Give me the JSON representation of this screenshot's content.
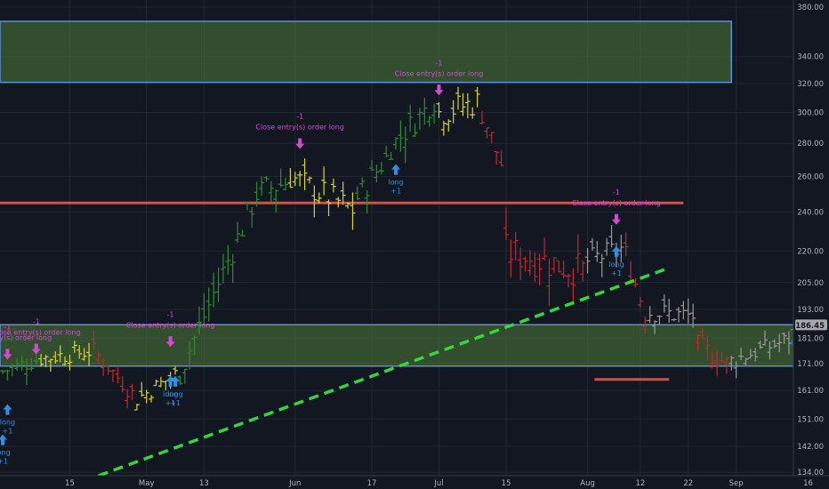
{
  "chart_data": {
    "type": "ohlc",
    "title": "",
    "xlabel": "",
    "ylabel": "",
    "ylim": [
      133,
      386
    ],
    "y_scale": "log",
    "grid": true,
    "current_price": 186.45,
    "y_ticks": [
      134.0,
      142.0,
      151.0,
      161.0,
      171.0,
      181.0,
      193.0,
      205.0,
      220.0,
      240.0,
      260.0,
      280.0,
      300.0,
      320.0,
      340.0,
      380.0
    ],
    "x_ticks": [
      "15",
      "May",
      "13",
      "Jun",
      "17",
      "Jul",
      "15",
      "Aug",
      "12",
      "22",
      "Sep",
      "16"
    ],
    "colors": {
      "background": "#131722",
      "grid": "#232733",
      "bull_strong": "#2f8c2f",
      "bull_weak": "#d4d43a",
      "bear": "#c22a2a",
      "neutral": "#9a9a9a",
      "zone_fill": "#4f7a3a",
      "zone_border": "#5c8fd6",
      "resistance_line": "#e5483f",
      "trend_line": "#35d63a",
      "entry_marker": "#2f8fe5",
      "exit_marker": "#d54ad5",
      "price_badge": "#a8a8b0"
    },
    "zones": [
      {
        "from": 321,
        "to": 368,
        "x_start": "Apr 01",
        "x_end": "Aug 31"
      },
      {
        "from": 170,
        "to": 186.5,
        "x_start": "Apr 01",
        "x_end": "Sep 15"
      }
    ],
    "levels": [
      {
        "price": 245,
        "x_start": "Apr 01",
        "x_end": "Aug 21"
      },
      {
        "price": 165,
        "x_start": "Aug 03",
        "x_end": "Aug 18"
      }
    ],
    "trendline": {
      "from": [
        "Apr 21",
        133
      ],
      "to": [
        "Aug 17",
        211
      ]
    },
    "segments": [
      {
        "from": "Apr 01",
        "to": "Apr 09",
        "start": 168,
        "end": 173,
        "vol": 0.025,
        "color": "bull_strong"
      },
      {
        "from": "Apr 09",
        "to": "Apr 20",
        "start": 173,
        "end": 176,
        "vol": 0.025,
        "color": "bull_weak"
      },
      {
        "from": "Apr 20",
        "to": "Apr 29",
        "start": 176,
        "end": 158,
        "vol": 0.025,
        "color": "bear"
      },
      {
        "from": "Apr 29",
        "to": "May 08",
        "start": 158,
        "end": 168,
        "vol": 0.025,
        "color": "bull_weak"
      },
      {
        "from": "May 08",
        "to": "May 24",
        "start": 168,
        "end": 250,
        "vol": 0.04,
        "color": "bull_strong"
      },
      {
        "from": "May 24",
        "to": "May 31",
        "start": 250,
        "end": 258,
        "vol": 0.04,
        "color": "bull_strong"
      },
      {
        "from": "May 31",
        "to": "Jun 14",
        "start": 260,
        "end": 240,
        "vol": 0.04,
        "color": "bull_weak"
      },
      {
        "from": "Jun 14",
        "to": "Jun 21",
        "start": 248,
        "end": 275,
        "vol": 0.035,
        "color": "bull_strong"
      },
      {
        "from": "Jun 21",
        "to": "Jul 01",
        "start": 278,
        "end": 312,
        "vol": 0.035,
        "color": "bull_strong"
      },
      {
        "from": "Jul 01",
        "to": "Jul 10",
        "start": 300,
        "end": 308,
        "vol": 0.04,
        "color": "bull_weak"
      },
      {
        "from": "Jul 10",
        "to": "Jul 15",
        "start": 300,
        "end": 260,
        "vol": 0.035,
        "color": "bear"
      },
      {
        "from": "Jul 15",
        "to": "Aug 01",
        "start": 220,
        "end": 210,
        "vol": 0.05,
        "color": "bear"
      },
      {
        "from": "Aug 01",
        "to": "Aug 09",
        "start": 215,
        "end": 222,
        "vol": 0.035,
        "color": "neutral"
      },
      {
        "from": "Aug 09",
        "to": "Aug 14",
        "start": 218,
        "end": 186,
        "vol": 0.035,
        "color": "bear"
      },
      {
        "from": "Aug 14",
        "to": "Aug 24",
        "start": 192,
        "end": 190,
        "vol": 0.03,
        "color": "neutral"
      },
      {
        "from": "Aug 24",
        "to": "Aug 31",
        "start": 178,
        "end": 170,
        "vol": 0.03,
        "color": "bear"
      },
      {
        "from": "Aug 31",
        "to": "Sep 14",
        "start": 172,
        "end": 182,
        "vol": 0.025,
        "color": "neutral"
      }
    ],
    "signals": [
      {
        "kind": "exit",
        "date": "Apr 02",
        "price": 176,
        "qty": "-1",
        "label": "Close entry(s) order long"
      },
      {
        "kind": "exit",
        "date": "Apr 08",
        "price": 178,
        "qty": "-1",
        "label": "Close entry(s) order long"
      },
      {
        "kind": "exit",
        "date": "May 06",
        "price": 181,
        "qty": "-1",
        "label": "Close entry(s) order long"
      },
      {
        "kind": "exit",
        "date": "Jun 02",
        "price": 282,
        "qty": "-1",
        "label": "Close entry(s) order long"
      },
      {
        "kind": "exit",
        "date": "Jul 01",
        "price": 318,
        "qty": "-1",
        "label": "Close entry(s) order long"
      },
      {
        "kind": "exit",
        "date": "Aug 07",
        "price": 238,
        "qty": "-1",
        "label": "Close entry(s) order long"
      },
      {
        "kind": "entry",
        "date": "Apr 01",
        "price": 143,
        "qty": "+1",
        "label": "long"
      },
      {
        "kind": "entry",
        "date": "Apr 02",
        "price": 153,
        "qty": "+1",
        "label": "long"
      },
      {
        "kind": "entry",
        "date": "May 06",
        "price": 163,
        "qty": "+1",
        "label": "long"
      },
      {
        "kind": "entry",
        "date": "May 07",
        "price": 163,
        "qty": "+1",
        "label": "long"
      },
      {
        "kind": "entry",
        "date": "Jun 22",
        "price": 262,
        "qty": "+1",
        "label": "long"
      },
      {
        "kind": "entry",
        "date": "Aug 07",
        "price": 218,
        "qty": "+1",
        "label": "long"
      },
      {
        "kind": "entry",
        "date": "Sep 14",
        "price": 183,
        "qty": "+1",
        "label": "long"
      }
    ]
  }
}
